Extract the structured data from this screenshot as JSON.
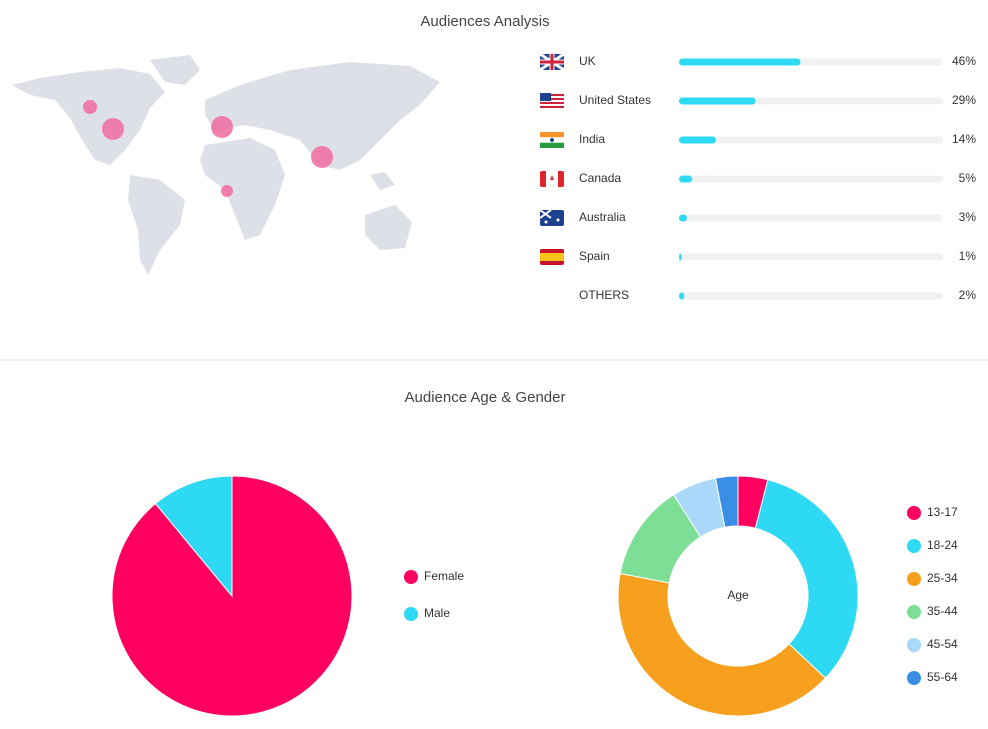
{
  "audiences": {
    "title": "Audiences Analysis"
  },
  "age_gender": {
    "title": "Audience Age & Gender"
  },
  "chart_data": [
    {
      "type": "hbar",
      "categories": [
        "UK",
        "United States",
        "India",
        "Canada",
        "Australia",
        "Spain",
        "OTHERS"
      ],
      "values": [
        46,
        29,
        14,
        5,
        3,
        1,
        2
      ],
      "value_labels": [
        "46%",
        "29%",
        "14%",
        "5%",
        "3%",
        "1%",
        "2%"
      ],
      "xlim": [
        0,
        100
      ],
      "color": "#2dd9f3"
    },
    {
      "type": "pie",
      "categories": [
        "Female",
        "Male"
      ],
      "values": [
        89,
        11
      ],
      "colors": [
        "#ff0060",
        "#2dd9f3"
      ]
    },
    {
      "type": "donut",
      "center_label": "Age",
      "categories": [
        "13-17",
        "18-24",
        "25-34",
        "35-44",
        "45-54",
        "55-64"
      ],
      "values": [
        4,
        33,
        41,
        13,
        6,
        3
      ],
      "colors": [
        "#ff0060",
        "#2dd9f3",
        "#f7a01e",
        "#7ddf95",
        "#a9d8fb",
        "#3a8ee6"
      ]
    }
  ]
}
